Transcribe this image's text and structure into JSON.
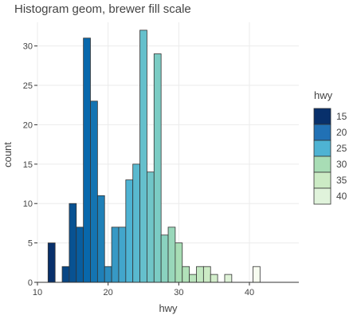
{
  "chart_data": {
    "type": "bar",
    "title": "Histogram geom, brewer fill scale",
    "xlabel": "hwy",
    "ylabel": "count",
    "xlim": [
      10,
      45
    ],
    "ylim": [
      0,
      33
    ],
    "x_ticks": [
      10,
      20,
      30,
      40
    ],
    "y_ticks": [
      0,
      5,
      10,
      15,
      20,
      25,
      30
    ],
    "grid": true,
    "bin_width": 1,
    "bins": [
      {
        "x": 12,
        "count": 5
      },
      {
        "x": 14,
        "count": 2
      },
      {
        "x": 15,
        "count": 10
      },
      {
        "x": 16,
        "count": 7
      },
      {
        "x": 17,
        "count": 31
      },
      {
        "x": 18,
        "count": 23
      },
      {
        "x": 19,
        "count": 11
      },
      {
        "x": 20,
        "count": 2
      },
      {
        "x": 21,
        "count": 7
      },
      {
        "x": 22,
        "count": 7
      },
      {
        "x": 23,
        "count": 13
      },
      {
        "x": 24,
        "count": 15
      },
      {
        "x": 25,
        "count": 32
      },
      {
        "x": 26,
        "count": 14
      },
      {
        "x": 27,
        "count": 29
      },
      {
        "x": 28,
        "count": 6
      },
      {
        "x": 29,
        "count": 7
      },
      {
        "x": 30,
        "count": 5
      },
      {
        "x": 31,
        "count": 2
      },
      {
        "x": 32,
        "count": 1
      },
      {
        "x": 33,
        "count": 2
      },
      {
        "x": 34,
        "count": 2
      },
      {
        "x": 35,
        "count": 1
      },
      {
        "x": 37,
        "count": 1
      },
      {
        "x": 41,
        "count": 2
      }
    ],
    "legend": {
      "title": "hwy",
      "position": "right",
      "items": [
        {
          "label": "15",
          "color": "#08306b"
        },
        {
          "label": "20",
          "color": "#2171b5"
        },
        {
          "label": "25",
          "color": "#4eb3d3"
        },
        {
          "label": "30",
          "color": "#a8ddb5"
        },
        {
          "label": "35",
          "color": "#ccebc5"
        },
        {
          "label": "40",
          "color": "#e0f3db"
        }
      ]
    },
    "fill_scale": {
      "domain": [
        12,
        17,
        20,
        23,
        27,
        30,
        34,
        41
      ],
      "colors": [
        "#08306b",
        "#0868ac",
        "#2b8cbe",
        "#4eb3d3",
        "#7bccc4",
        "#a8ddb5",
        "#ccebc5",
        "#f7fcf0"
      ]
    }
  }
}
